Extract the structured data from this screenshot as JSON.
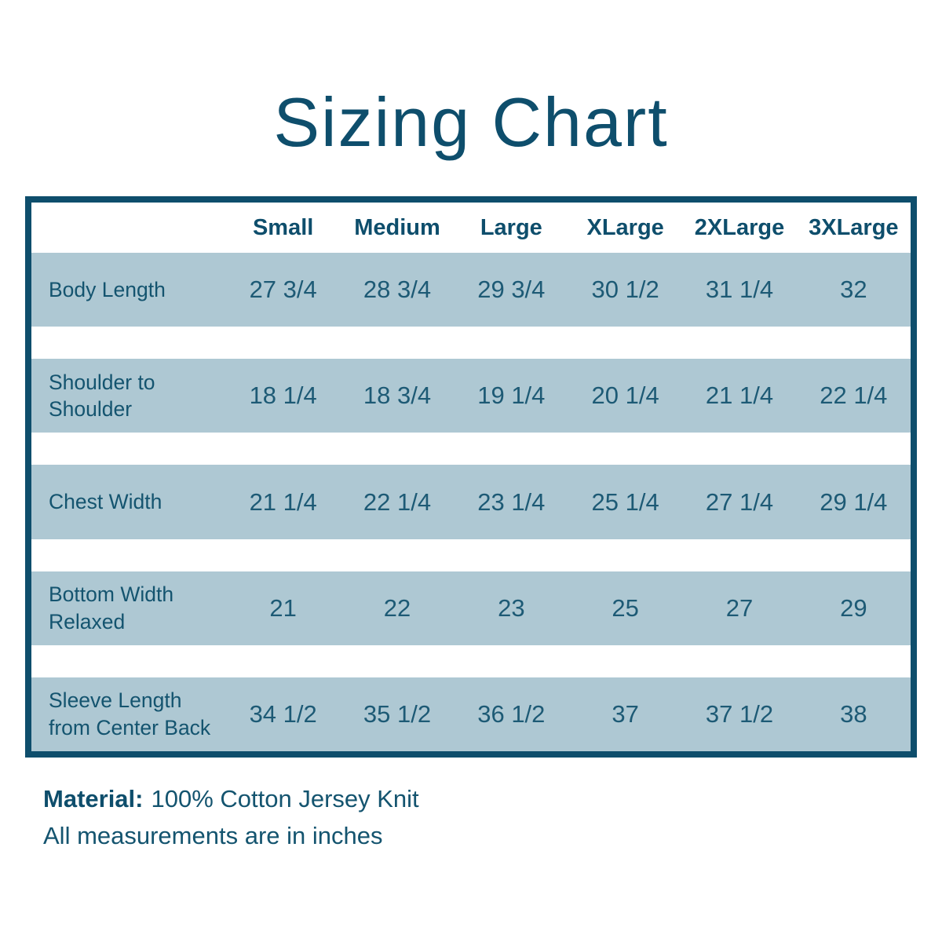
{
  "title": "Sizing Chart",
  "chart_data": {
    "type": "table",
    "title": "Sizing Chart",
    "columns": [
      "Small",
      "Medium",
      "Large",
      "XLarge",
      "2XLarge",
      "3XLarge"
    ],
    "rows": [
      {
        "label": "Body Length",
        "values": [
          "27 3/4",
          "28 3/4",
          "29 3/4",
          "30 1/2",
          "31 1/4",
          "32"
        ]
      },
      {
        "label": "Shoulder to Shoulder",
        "values": [
          "18 1/4",
          "18 3/4",
          "19 1/4",
          "20 1/4",
          "21 1/4",
          "22 1/4"
        ]
      },
      {
        "label": "Chest Width",
        "values": [
          "21 1/4",
          "22 1/4",
          "23 1/4",
          "25 1/4",
          "27 1/4",
          "29 1/4"
        ]
      },
      {
        "label": "Bottom Width Relaxed",
        "values": [
          "21",
          "22",
          "23",
          "25",
          "27",
          "29"
        ]
      },
      {
        "label": "Sleeve Length from Center Back",
        "values": [
          "34 1/2",
          "35 1/2",
          "36 1/2",
          "37",
          "37 1/2",
          "38"
        ]
      }
    ],
    "units": "inches"
  },
  "footer": {
    "material_label": "Material:",
    "material_value": "100% Cotton Jersey Knit",
    "note": "All measurements are in inches"
  },
  "colors": {
    "heading_teal": "#0E4E6C",
    "text_teal": "#1D5A75",
    "row_background": "#AEC8D3",
    "page_background": "#FFFFFF"
  }
}
